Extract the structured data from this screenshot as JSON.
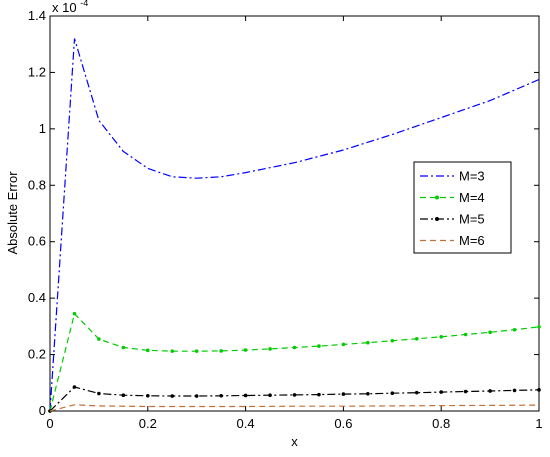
{
  "chart_data": {
    "type": "line",
    "xlabel": "x",
    "ylabel": "Absolute Error",
    "y_exponent_label": "x 10",
    "y_exponent_power": "-4",
    "xlim": [
      0,
      1
    ],
    "ylim": [
      0,
      1.4
    ],
    "x_ticks": [
      "0",
      "0.2",
      "0.4",
      "0.6",
      "0.8",
      "1"
    ],
    "y_ticks": [
      "0",
      "0.2",
      "0.4",
      "0.6",
      "0.8",
      "1",
      "1.2",
      "1.4"
    ],
    "x_tick_values": [
      0,
      0.2,
      0.4,
      0.6,
      0.8,
      1
    ],
    "y_tick_values": [
      0,
      0.2,
      0.4,
      0.6,
      0.8,
      1.0,
      1.2,
      1.4
    ],
    "grid": false,
    "legend_position": "right-middle",
    "series": [
      {
        "name": "M=3",
        "color": "#0000ff",
        "style": "dashdot",
        "marker": "none",
        "x": [
          0,
          0.05,
          0.1,
          0.15,
          0.2,
          0.25,
          0.3,
          0.35,
          0.4,
          0.5,
          0.6,
          0.7,
          0.8,
          0.9,
          1.0
        ],
        "values": [
          0,
          1.32,
          1.03,
          0.92,
          0.86,
          0.83,
          0.825,
          0.83,
          0.845,
          0.88,
          0.925,
          0.98,
          1.04,
          1.1,
          1.175
        ]
      },
      {
        "name": "M=4",
        "color": "#00cc00",
        "style": "dashed",
        "marker": "dot",
        "x": [
          0,
          0.05,
          0.1,
          0.15,
          0.2,
          0.25,
          0.3,
          0.35,
          0.4,
          0.45,
          0.5,
          0.55,
          0.6,
          0.65,
          0.7,
          0.75,
          0.8,
          0.85,
          0.9,
          0.95,
          1.0
        ],
        "values": [
          0,
          0.345,
          0.255,
          0.225,
          0.215,
          0.212,
          0.212,
          0.213,
          0.216,
          0.22,
          0.225,
          0.23,
          0.236,
          0.242,
          0.249,
          0.256,
          0.263,
          0.271,
          0.279,
          0.288,
          0.298
        ]
      },
      {
        "name": "M=5",
        "color": "#000000",
        "style": "dashdot",
        "marker": "dot",
        "x": [
          0,
          0.05,
          0.1,
          0.15,
          0.2,
          0.25,
          0.3,
          0.35,
          0.4,
          0.45,
          0.5,
          0.55,
          0.6,
          0.65,
          0.7,
          0.75,
          0.8,
          0.85,
          0.9,
          0.95,
          1.0
        ],
        "values": [
          0,
          0.085,
          0.062,
          0.056,
          0.054,
          0.053,
          0.053,
          0.054,
          0.055,
          0.056,
          0.057,
          0.058,
          0.06,
          0.061,
          0.063,
          0.065,
          0.067,
          0.069,
          0.071,
          0.073,
          0.075
        ]
      },
      {
        "name": "M=6",
        "color": "#c0703a",
        "style": "dashed",
        "marker": "none",
        "x": [
          0,
          0.05,
          0.1,
          0.2,
          0.3,
          0.4,
          0.5,
          0.6,
          0.7,
          0.8,
          0.9,
          1.0
        ],
        "values": [
          0,
          0.022,
          0.018,
          0.016,
          0.016,
          0.016,
          0.017,
          0.017,
          0.018,
          0.019,
          0.02,
          0.021
        ]
      }
    ]
  }
}
